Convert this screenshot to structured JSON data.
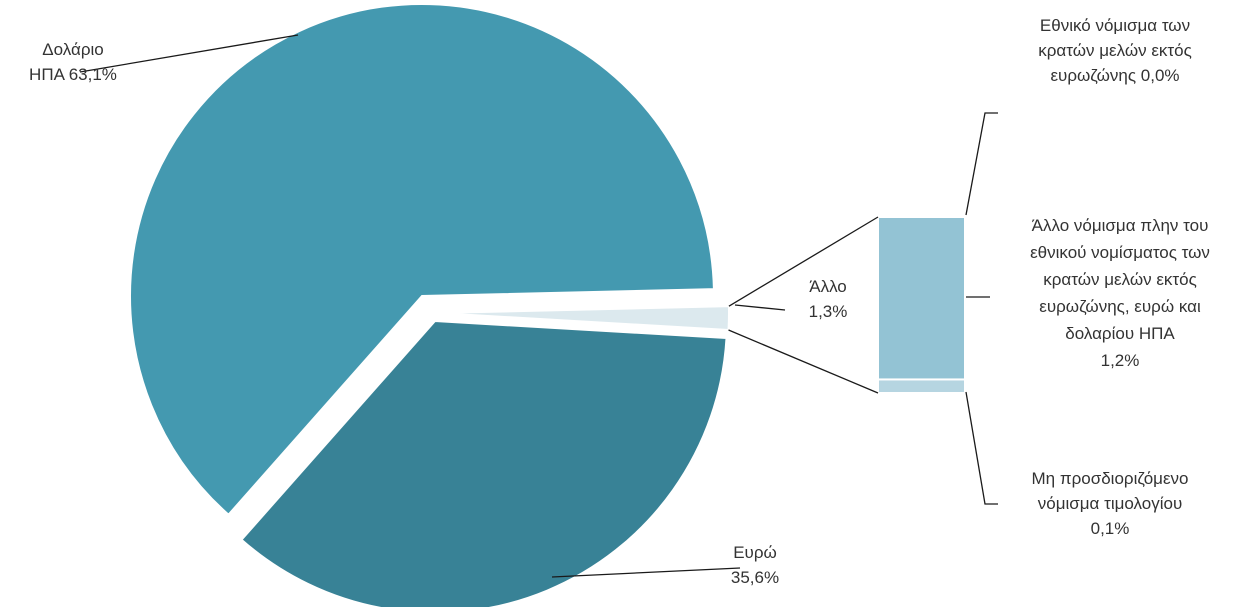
{
  "chart_data": {
    "type": "pie",
    "subtype": "bar-of-pie",
    "title": "",
    "legend": "none",
    "slices": [
      {
        "name": "Δολάριο ΗΠΑ",
        "value": 63.1,
        "label_lines": [
          "Δολάριο",
          "ΗΠΑ 63,1%"
        ],
        "color": "#4499b0"
      },
      {
        "name": "Ευρώ",
        "value": 35.6,
        "label_lines": [
          "Ευρώ",
          "35,6%"
        ],
        "color": "#388296"
      },
      {
        "name": "Άλλο",
        "value": 1.3,
        "label_lines": [
          "Άλλο",
          "1,3%"
        ],
        "color": "#dce9ee"
      }
    ],
    "breakdown": {
      "of": "Άλλο",
      "segments": [
        {
          "name": "Εθνικό νόμισμα των κρατών μελών εκτός ευρωζώνης",
          "value": 0.0,
          "label_lines": [
            "Εθνικό νόμισμα των",
            "κρατών μελών εκτός",
            "ευρωζώνης 0,0%"
          ],
          "color": "#93c3d4"
        },
        {
          "name": "Άλλο νόμισμα πλην του εθνικού νομίσματος των κρατών μελών εκτός ευρωζώνης, ευρώ και δολαρίου ΗΠΑ",
          "value": 1.2,
          "label_lines": [
            "Άλλο νόμισμα πλην του",
            "εθνικού νομίσματος των",
            "κρατών μελών εκτός",
            "ευρωζώνης, ευρώ και",
            "δολαρίου ΗΠΑ",
            "1,2%"
          ],
          "color": "#93c3d4"
        },
        {
          "name": "Μη προσδιοριζόμενο νόμισμα τιμολογίου",
          "value": 0.1,
          "label_lines": [
            "Μη προσδιοριζόμενο",
            "νόμισμα τιμολογίου",
            "0,1%"
          ],
          "color": "#b6d5e1"
        }
      ]
    }
  }
}
